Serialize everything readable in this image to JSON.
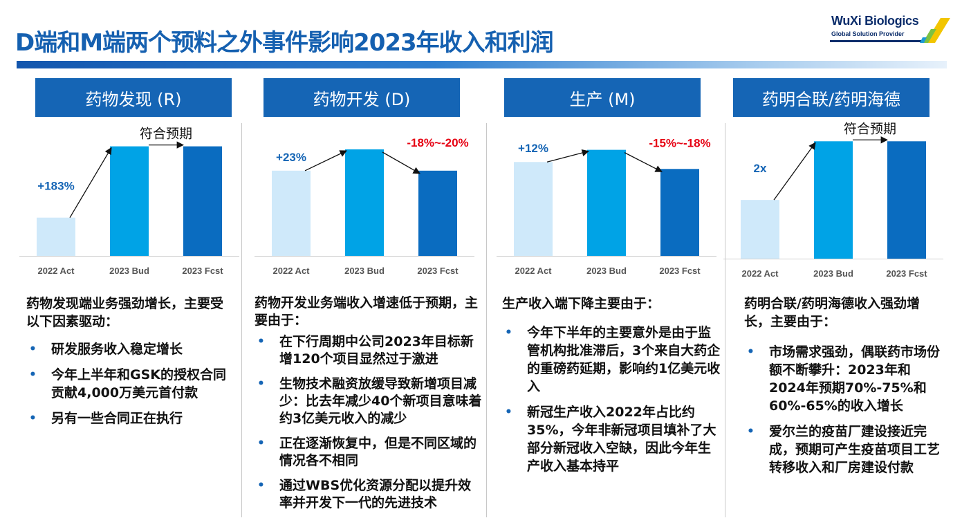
{
  "title": "D端和M端两个预料之外事件影响2023年收入和利润",
  "logo": {
    "name": "WuXi Biologics",
    "tagline": "Global Solution Provider"
  },
  "colors": {
    "act": "#cfe9fa",
    "bud": "#00a3e6",
    "fcst": "#0a6cc0",
    "header": "#1565b5",
    "up": "#1565b5",
    "down": "#e60012"
  },
  "columns": [
    {
      "header": "药物发现 (R)",
      "intro": "药物发现端业务强劲增长，主要受以下因素驱动：",
      "bullets": [
        "研发服务收入稳定增长",
        "今年上半年和GSK的授权合同贡献4,000万美元首付款",
        "另有一些合同正在执行"
      ]
    },
    {
      "header": "药物开发 (D)",
      "intro": "药物开发业务端收入增速低于预期，主要由于：",
      "bullets": [
        "在下行周期中公司2023年目标新增120个项目显然过于激进",
        "生物技术融资放缓导致新增项目减少：比去年减少40个新项目意味着约3亿美元收入的减少",
        "正在逐渐恢复中，但是不同区域的情况各不相同",
        "通过WBS优化资源分配以提升效率并开发下一代的先进技术"
      ]
    },
    {
      "header": "生产 (M)",
      "intro": "生产收入端下降主要由于：",
      "bullets": [
        "今年下半年的主要意外是由于监管机构批准滞后，3个来自大药企的重磅药延期，影响约1亿美元收入",
        "新冠生产收入2022年占比约35%，今年非新冠项目填补了大部分新冠收入空缺，因此今年生产收入基本持平"
      ]
    },
    {
      "header": "药明合联/药明海德",
      "intro": "药明合联/药明海德收入强劲增长，主要由于：",
      "bullets": [
        "市场需求强劲，偶联药市场份额不断攀升：2023年和2024年预期70%-75%和60%-65%的收入增长",
        "爱尔兰的疫苗厂建设接近完成，预期可产生疫苗项目工艺转移收入和厂房建设付款"
      ]
    }
  ],
  "chart_data": [
    {
      "type": "bar",
      "title": "药物发现 (R)",
      "categories": [
        "2022 Act",
        "2023 Bud",
        "2023 Fcst"
      ],
      "values": [
        22,
        63,
        63
      ],
      "ylim": [
        0,
        70
      ],
      "annotations": [
        {
          "text": "+183%",
          "kind": "up",
          "from": 0,
          "to": 1
        },
        {
          "text": "符合预期",
          "kind": "flat",
          "from": 1,
          "to": 2
        }
      ]
    },
    {
      "type": "bar",
      "title": "药物开发 (D)",
      "categories": [
        "2022 Act",
        "2023 Bud",
        "2023 Fcst"
      ],
      "values": [
        56,
        70,
        56
      ],
      "ylim": [
        0,
        80
      ],
      "annotations": [
        {
          "text": "+23%",
          "kind": "up",
          "from": 0,
          "to": 1
        },
        {
          "text": "-18%~-20%",
          "kind": "down",
          "from": 1,
          "to": 2
        }
      ]
    },
    {
      "type": "bar",
      "title": "生产 (M)",
      "categories": [
        "2022 Act",
        "2023 Bud",
        "2023 Fcst"
      ],
      "values": [
        54,
        61,
        50
      ],
      "ylim": [
        0,
        70
      ],
      "annotations": [
        {
          "text": "+12%",
          "kind": "up",
          "from": 0,
          "to": 1
        },
        {
          "text": "-15%~-18%",
          "kind": "down",
          "from": 1,
          "to": 2
        }
      ]
    },
    {
      "type": "bar",
      "title": "药明合联/药明海德",
      "categories": [
        "2022 Act",
        "2023 Bud",
        "2023 Fcst"
      ],
      "values": [
        33,
        66,
        66
      ],
      "ylim": [
        0,
        70
      ],
      "annotations": [
        {
          "text": "2x",
          "kind": "up",
          "from": 0,
          "to": 1
        },
        {
          "text": "符合预期",
          "kind": "flat",
          "from": 1,
          "to": 2
        }
      ]
    }
  ]
}
